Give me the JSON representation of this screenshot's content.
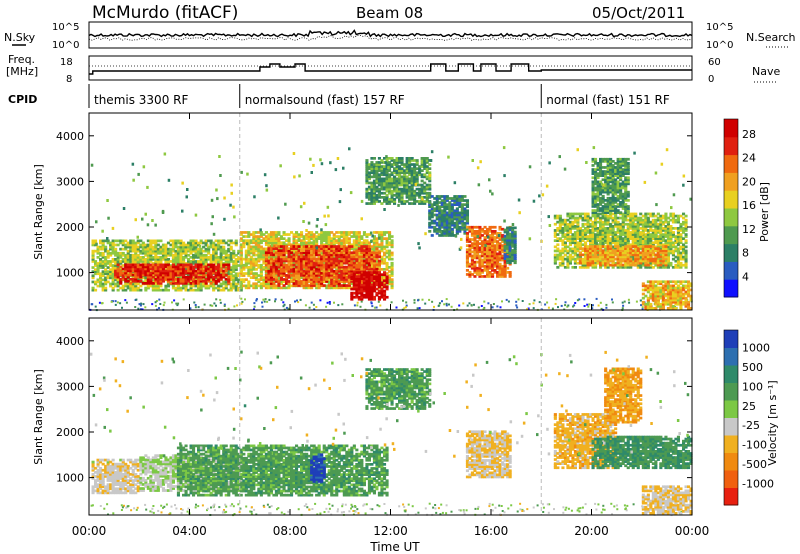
{
  "header": {
    "station": "McMurdo (fitACF)",
    "beam": "Beam 08",
    "date": "05/Oct/2011"
  },
  "left_labels": {
    "nsky": "N.Sky",
    "freq_line1": "Freq.",
    "freq_line2": "[MHz]",
    "cpid": "CPID"
  },
  "right_labels": {
    "nsearch": "N.Search",
    "nave": "Nave"
  },
  "noise_axis": {
    "left_top": "10^5",
    "left_bottom": "10^0",
    "right_top": "10^5",
    "right_bottom": "10^0"
  },
  "freq_axis": {
    "left_top": "18",
    "left_bottom": "8",
    "right_top": "60",
    "right_bottom": "0"
  },
  "cpid_segments": [
    {
      "label": "themis 3300 RF",
      "start_hour": 0,
      "end_hour": 6
    },
    {
      "label": "normalsound (fast) 157 RF",
      "start_hour": 6,
      "end_hour": 18
    },
    {
      "label": "normal (fast) 151 RF",
      "start_hour": 18,
      "end_hour": 24
    }
  ],
  "colorbars": {
    "power": {
      "label": "Power [dB]",
      "ticks": [
        "4",
        "8",
        "12",
        "16",
        "20",
        "24",
        "28"
      ],
      "colors": [
        "#1010ff",
        "#2a5cc0",
        "#2c7f66",
        "#4f9a4f",
        "#8ec840",
        "#e8d020",
        "#f0a020",
        "#f06a10",
        "#e02010",
        "#d00000"
      ]
    },
    "velocity": {
      "label": "Velocity [m s⁻¹]",
      "ticks": [
        "1000",
        "500",
        "100",
        "25",
        "-25",
        "-100",
        "-500",
        "-1000"
      ],
      "colors": [
        "#1f3fb8",
        "#2d6fb0",
        "#2f8a6a",
        "#4d9a52",
        "#7cc845",
        "#c8c8c8",
        "#f0b020",
        "#f08a10",
        "#f06010",
        "#e82010"
      ]
    }
  },
  "chart_data": {
    "type": "heatmap",
    "title": "McMurdo (fitACF) Beam 08 05/Oct/2011",
    "xlabel": "Time UT",
    "x_ticks": [
      "00:00",
      "04:00",
      "08:00",
      "12:00",
      "16:00",
      "20:00",
      "00:00"
    ],
    "xlim_hours": [
      0,
      24
    ],
    "panels": [
      {
        "name": "Power",
        "ylabel": "Slant Range [km]",
        "ylim_km": [
          180,
          4500
        ],
        "y_ticks": [
          "1000",
          "2000",
          "3000",
          "4000"
        ],
        "colorbar_label": "Power [dB]",
        "color_range": [
          0,
          30
        ],
        "regions": [
          {
            "t0": 0.1,
            "t1": 6.0,
            "r0": 600,
            "r1": 1700,
            "mean": 14
          },
          {
            "t0": 1.0,
            "t1": 5.5,
            "r0": 750,
            "r1": 1200,
            "mean": 26
          },
          {
            "t0": 6.0,
            "t1": 12.0,
            "r0": 650,
            "r1": 1900,
            "mean": 16
          },
          {
            "t0": 7.0,
            "t1": 11.5,
            "r0": 700,
            "r1": 1600,
            "mean": 24
          },
          {
            "t0": 10.4,
            "t1": 11.8,
            "r0": 400,
            "r1": 1000,
            "mean": 29
          },
          {
            "t0": 11.0,
            "t1": 13.5,
            "r0": 2500,
            "r1": 3500,
            "mean": 10
          },
          {
            "t0": 13.5,
            "t1": 15.0,
            "r0": 1800,
            "r1": 2700,
            "mean": 8
          },
          {
            "t0": 15.0,
            "t1": 16.8,
            "r0": 900,
            "r1": 2000,
            "mean": 22
          },
          {
            "t0": 16.5,
            "t1": 17.0,
            "r0": 1200,
            "r1": 2000,
            "mean": 8
          },
          {
            "t0": 18.5,
            "t1": 23.8,
            "r0": 1100,
            "r1": 2300,
            "mean": 14
          },
          {
            "t0": 19.5,
            "t1": 23.0,
            "r0": 1150,
            "r1": 1600,
            "mean": 20
          },
          {
            "t0": 20.0,
            "t1": 21.5,
            "r0": 2300,
            "r1": 3500,
            "mean": 10
          },
          {
            "t0": 22.0,
            "t1": 24.0,
            "r0": 200,
            "r1": 800,
            "mean": 18
          }
        ]
      },
      {
        "name": "Velocity",
        "ylabel": "Slant Range [km]",
        "ylim_km": [
          180,
          4500
        ],
        "y_ticks": [
          "1000",
          "2000",
          "3000",
          "4000"
        ],
        "colorbar_label": "Velocity [m s⁻¹]",
        "color_range": [
          -1000,
          1000
        ],
        "regions": [
          {
            "t0": 0.1,
            "t1": 2.0,
            "r0": 650,
            "r1": 1400,
            "mean": -150
          },
          {
            "t0": 2.0,
            "t1": 6.0,
            "r0": 700,
            "r1": 1500,
            "mean": 0
          },
          {
            "t0": 3.5,
            "t1": 11.8,
            "r0": 600,
            "r1": 1700,
            "mean": 300
          },
          {
            "t0": 8.8,
            "t1": 9.3,
            "r0": 900,
            "r1": 1500,
            "mean": 900
          },
          {
            "t0": 11.0,
            "t1": 13.5,
            "r0": 2500,
            "r1": 3400,
            "mean": 300
          },
          {
            "t0": 15.0,
            "t1": 16.8,
            "r0": 1000,
            "r1": 2000,
            "mean": -200
          },
          {
            "t0": 18.5,
            "t1": 21.0,
            "r0": 1200,
            "r1": 2400,
            "mean": -300
          },
          {
            "t0": 20.0,
            "t1": 24.0,
            "r0": 1200,
            "r1": 1900,
            "mean": 400
          },
          {
            "t0": 20.5,
            "t1": 22.0,
            "r0": 2200,
            "r1": 3400,
            "mean": -400
          },
          {
            "t0": 22.0,
            "t1": 24.0,
            "r0": 200,
            "r1": 800,
            "mean": -200
          }
        ]
      }
    ]
  }
}
